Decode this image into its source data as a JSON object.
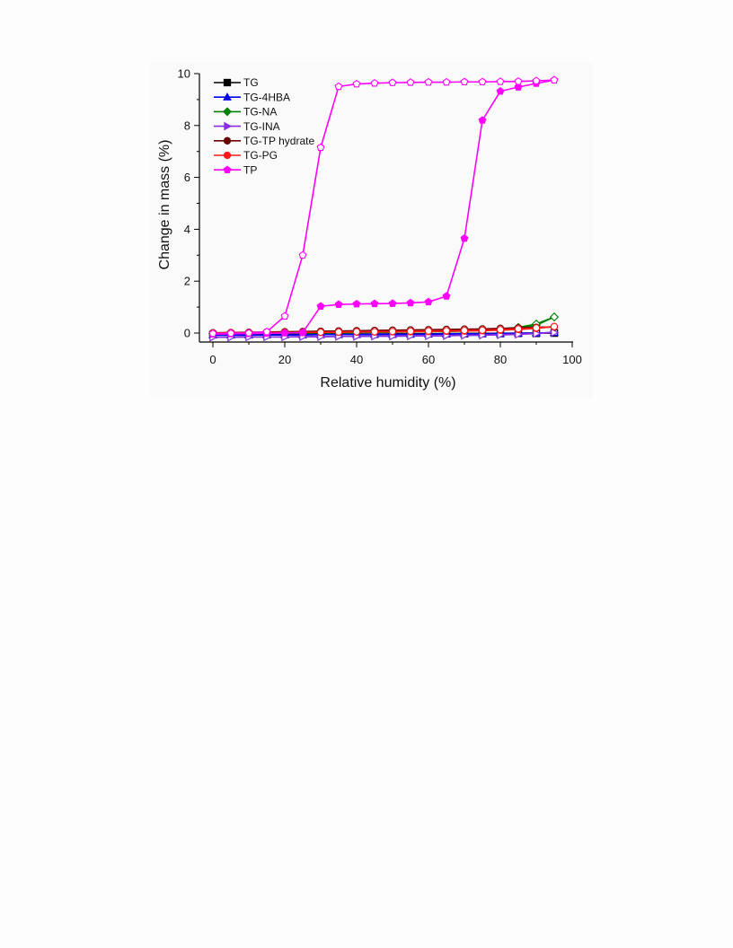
{
  "chart_data": {
    "type": "line",
    "title": "",
    "xlabel": "Relative humidity (%)",
    "ylabel": "Change in mass (%)",
    "xlim": [
      -4,
      100
    ],
    "ylim": [
      -0.35,
      10
    ],
    "xticks": [
      0,
      20,
      40,
      60,
      80,
      100
    ],
    "yticks": [
      0,
      2,
      4,
      6,
      8,
      10
    ],
    "legend_position": "top-left",
    "series": [
      {
        "name": "TG",
        "color": "#000000",
        "marker": "square",
        "sorption_x": [
          0,
          5,
          10,
          15,
          20,
          25,
          30,
          35,
          40,
          45,
          50,
          55,
          60,
          65,
          70,
          75,
          80,
          85,
          90,
          95
        ],
        "sorption_y": [
          -0.06,
          -0.06,
          -0.06,
          -0.06,
          -0.05,
          -0.05,
          -0.05,
          -0.04,
          -0.04,
          -0.04,
          -0.03,
          -0.03,
          -0.03,
          -0.02,
          -0.02,
          -0.01,
          -0.01,
          0.0,
          0.0,
          0.0
        ],
        "desorption_x": [
          95,
          90,
          85,
          80,
          75,
          70,
          65,
          60,
          55,
          50,
          45,
          40,
          35,
          30,
          25,
          20,
          15,
          10,
          5,
          0
        ],
        "desorption_y": [
          0.0,
          -0.01,
          -0.01,
          -0.02,
          -0.02,
          -0.02,
          -0.03,
          -0.03,
          -0.03,
          -0.04,
          -0.04,
          -0.04,
          -0.05,
          -0.05,
          -0.05,
          -0.05,
          -0.06,
          -0.06,
          -0.06,
          -0.06
        ]
      },
      {
        "name": "TG-4HBA",
        "color": "#0000ee",
        "marker": "triangle-up",
        "sorption_x": [
          0,
          5,
          10,
          15,
          20,
          25,
          30,
          35,
          40,
          45,
          50,
          55,
          60,
          65,
          70,
          75,
          80,
          85,
          90,
          95
        ],
        "sorption_y": [
          -0.08,
          -0.08,
          -0.08,
          -0.07,
          -0.07,
          -0.07,
          -0.06,
          -0.06,
          -0.06,
          -0.05,
          -0.05,
          -0.05,
          -0.04,
          -0.04,
          -0.03,
          -0.03,
          -0.02,
          -0.01,
          0.0,
          0.02
        ],
        "desorption_x": [
          95,
          90,
          85,
          80,
          75,
          70,
          65,
          60,
          55,
          50,
          45,
          40,
          35,
          30,
          25,
          20,
          15,
          10,
          5,
          0
        ],
        "desorption_y": [
          0.02,
          0.0,
          -0.01,
          -0.02,
          -0.03,
          -0.03,
          -0.04,
          -0.04,
          -0.05,
          -0.05,
          -0.05,
          -0.06,
          -0.06,
          -0.06,
          -0.07,
          -0.07,
          -0.07,
          -0.08,
          -0.08,
          -0.08
        ]
      },
      {
        "name": "TG-NA",
        "color": "#008000",
        "marker": "diamond",
        "sorption_x": [
          0,
          5,
          10,
          15,
          20,
          25,
          30,
          35,
          40,
          45,
          50,
          55,
          60,
          65,
          70,
          75,
          80,
          85,
          90,
          95
        ],
        "sorption_y": [
          -0.02,
          -0.02,
          -0.01,
          -0.01,
          0.0,
          0.0,
          0.01,
          0.01,
          0.02,
          0.02,
          0.03,
          0.04,
          0.05,
          0.06,
          0.08,
          0.1,
          0.13,
          0.18,
          0.3,
          0.62
        ],
        "desorption_x": [
          95,
          90,
          85,
          80,
          75,
          70,
          65,
          60,
          55,
          50,
          45,
          40,
          35,
          30,
          25,
          20,
          15,
          10,
          5,
          0
        ],
        "desorption_y": [
          0.62,
          0.35,
          0.22,
          0.16,
          0.12,
          0.1,
          0.08,
          0.07,
          0.06,
          0.05,
          0.04,
          0.03,
          0.03,
          0.02,
          0.01,
          0.01,
          0.0,
          0.0,
          -0.01,
          -0.02
        ]
      },
      {
        "name": "TG-INA",
        "color": "#8a2be2",
        "marker": "triangle-right",
        "sorption_x": [
          0,
          5,
          10,
          15,
          20,
          25,
          30,
          35,
          40,
          45,
          50,
          55,
          60,
          65,
          70,
          75,
          80,
          85,
          90,
          95
        ],
        "sorption_y": [
          -0.16,
          -0.16,
          -0.15,
          -0.15,
          -0.15,
          -0.14,
          -0.14,
          -0.13,
          -0.13,
          -0.12,
          -0.12,
          -0.11,
          -0.1,
          -0.1,
          -0.09,
          -0.08,
          -0.06,
          -0.04,
          -0.01,
          0.02
        ],
        "desorption_x": [
          95,
          90,
          85,
          80,
          75,
          70,
          65,
          60,
          55,
          50,
          45,
          40,
          35,
          30,
          25,
          20,
          15,
          10,
          5,
          0
        ],
        "desorption_y": [
          0.02,
          -0.02,
          -0.05,
          -0.07,
          -0.08,
          -0.09,
          -0.1,
          -0.11,
          -0.11,
          -0.12,
          -0.12,
          -0.13,
          -0.13,
          -0.14,
          -0.14,
          -0.15,
          -0.15,
          -0.15,
          -0.16,
          -0.16
        ]
      },
      {
        "name": "TG-TP hydrate",
        "color": "#6b0000",
        "marker": "circle",
        "sorption_x": [
          0,
          5,
          10,
          15,
          20,
          25,
          30,
          35,
          40,
          45,
          50,
          55,
          60,
          65,
          70,
          75,
          80,
          85,
          90,
          95
        ],
        "sorption_y": [
          0.0,
          0.01,
          0.02,
          0.03,
          0.04,
          0.05,
          0.06,
          0.07,
          0.08,
          0.09,
          0.1,
          0.11,
          0.12,
          0.13,
          0.14,
          0.15,
          0.17,
          0.19,
          0.21,
          0.24
        ],
        "desorption_x": [
          95,
          90,
          85,
          80,
          75,
          70,
          65,
          60,
          55,
          50,
          45,
          40,
          35,
          30,
          25,
          20,
          15,
          10,
          5,
          0
        ],
        "desorption_y": [
          0.24,
          0.22,
          0.2,
          0.18,
          0.16,
          0.15,
          0.14,
          0.13,
          0.12,
          0.11,
          0.1,
          0.09,
          0.08,
          0.07,
          0.06,
          0.05,
          0.04,
          0.03,
          0.02,
          0.01
        ]
      },
      {
        "name": "TG-PG",
        "color": "#ff1a1a",
        "marker": "circle",
        "sorption_x": [
          0,
          5,
          10,
          15,
          20,
          25,
          30,
          35,
          40,
          45,
          50,
          55,
          60,
          65,
          70,
          75,
          80,
          85,
          90,
          95
        ],
        "sorption_y": [
          0.0,
          0.0,
          0.01,
          0.01,
          0.02,
          0.02,
          0.03,
          0.03,
          0.04,
          0.04,
          0.05,
          0.05,
          0.06,
          0.07,
          0.08,
          0.09,
          0.11,
          0.14,
          0.18,
          0.25
        ],
        "desorption_x": [
          95,
          90,
          85,
          80,
          75,
          70,
          65,
          60,
          55,
          50,
          45,
          40,
          35,
          30,
          25,
          20,
          15,
          10,
          5,
          0
        ],
        "desorption_y": [
          0.25,
          0.2,
          0.16,
          0.13,
          0.11,
          0.1,
          0.09,
          0.08,
          0.07,
          0.06,
          0.05,
          0.05,
          0.04,
          0.03,
          0.03,
          0.02,
          0.02,
          0.01,
          0.01,
          0.0
        ]
      },
      {
        "name": "TP",
        "color": "#ff00ff",
        "marker": "pentagon",
        "sorption_x": [
          0,
          5,
          10,
          15,
          20,
          25,
          30,
          35,
          40,
          45,
          50,
          55,
          60,
          65,
          70,
          75,
          80,
          85,
          90,
          95
        ],
        "sorption_y": [
          -0.04,
          -0.03,
          -0.02,
          -0.01,
          0.0,
          0.02,
          1.03,
          1.1,
          1.12,
          1.13,
          1.14,
          1.16,
          1.2,
          1.42,
          3.65,
          8.2,
          9.32,
          9.48,
          9.62,
          9.75
        ],
        "desorption_x": [
          95,
          90,
          85,
          80,
          75,
          70,
          65,
          60,
          55,
          50,
          45,
          40,
          35,
          30,
          25,
          20,
          15,
          10,
          5,
          0
        ],
        "desorption_y": [
          9.75,
          9.72,
          9.7,
          9.69,
          9.68,
          9.68,
          9.67,
          9.67,
          9.66,
          9.65,
          9.63,
          9.6,
          9.5,
          7.15,
          3.0,
          0.65,
          0.05,
          0.0,
          -0.01,
          -0.02
        ]
      }
    ]
  }
}
